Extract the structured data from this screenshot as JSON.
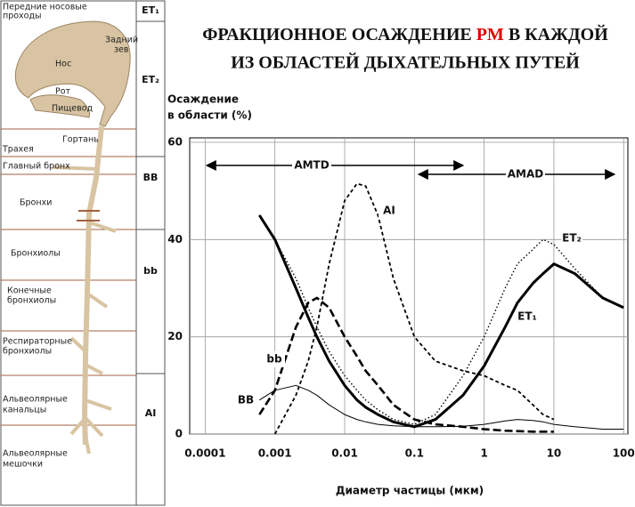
{
  "chart_data": {
    "type": "line",
    "title_parts": [
      "ФРАКЦИОННОЕ ОСАЖДЕНИЕ ",
      "PM",
      " В КАЖДОЙ",
      "ИЗ ОБЛАСТЕЙ ДЫХАТЕЛЬНЫХ ПУТЕЙ"
    ],
    "title_highlight_color": "#e00000",
    "y_label_lines": [
      "Осаждение",
      "в области (%)"
    ],
    "x_label": "Диаметр частицы (мкм)",
    "annotations": [
      "AMTD",
      "AMAD"
    ],
    "log_x": true,
    "grid": true,
    "xlim": [
      6e-05,
      115
    ],
    "ylim": [
      0,
      60
    ],
    "xticks": [
      0.0001,
      0.001,
      0.01,
      0.1,
      1,
      10,
      100
    ],
    "yticks": [
      0,
      20,
      40,
      60
    ],
    "x": [
      0.0006,
      0.001,
      0.002,
      0.003,
      0.004,
      0.006,
      0.01,
      0.015,
      0.02,
      0.03,
      0.05,
      0.1,
      0.2,
      0.5,
      1,
      2,
      3,
      5,
      7,
      10,
      20,
      50,
      100
    ],
    "series": [
      {
        "name": "ET₁",
        "color": "#000000",
        "values": [
          45,
          40,
          30,
          24,
          20,
          15,
          10,
          7,
          5.5,
          4,
          2.5,
          1.5,
          3,
          8,
          14,
          22,
          27,
          31,
          33,
          35,
          33,
          28,
          26
        ]
      },
      {
        "name": "ET₂",
        "color": "#000000",
        "values": [
          45,
          40,
          32,
          26,
          22,
          17,
          12,
          9,
          7,
          5,
          3,
          2,
          4,
          12,
          20,
          30,
          35,
          38,
          40,
          39,
          34,
          28,
          26
        ]
      },
      {
        "name": "AI",
        "color": "#000000",
        "values": [
          null,
          0,
          8,
          15,
          22,
          35,
          48,
          51.5,
          51,
          45,
          32,
          20,
          15,
          13,
          12,
          10,
          9,
          6,
          4,
          3,
          null,
          null,
          null
        ]
      },
      {
        "name": "bb",
        "color": "#000000",
        "values": [
          4,
          9,
          22,
          27,
          28,
          26,
          20,
          16,
          13,
          10,
          6,
          3,
          2,
          1.5,
          1,
          0.7,
          0.6,
          0.5,
          0.5,
          0.5,
          null,
          null,
          null
        ]
      },
      {
        "name": "BB",
        "color": "#000000",
        "values": [
          7,
          9,
          10,
          9,
          8,
          6,
          4,
          3,
          2.5,
          2,
          1.7,
          1.5,
          1.5,
          1.6,
          2,
          2.7,
          3,
          2.8,
          2.5,
          2,
          1.5,
          1,
          1
        ]
      }
    ]
  },
  "diagram": {
    "labels": [
      "Передние носовые",
      "проходы",
      "Задний",
      "зев",
      "Нос",
      "Рот",
      "Пищевод",
      "Гортань",
      "Трахея",
      "Главный бронх",
      "Бронхи",
      "Бронхиолы",
      "Конечные",
      "бронхиолы",
      "Респираторные",
      "бронхиолы",
      "Альвеолярные",
      "канальцы",
      "Альвеолярные",
      "мешочки"
    ],
    "regions": [
      "ET₁",
      "ET₂",
      "BB",
      "bb",
      "AI"
    ]
  }
}
